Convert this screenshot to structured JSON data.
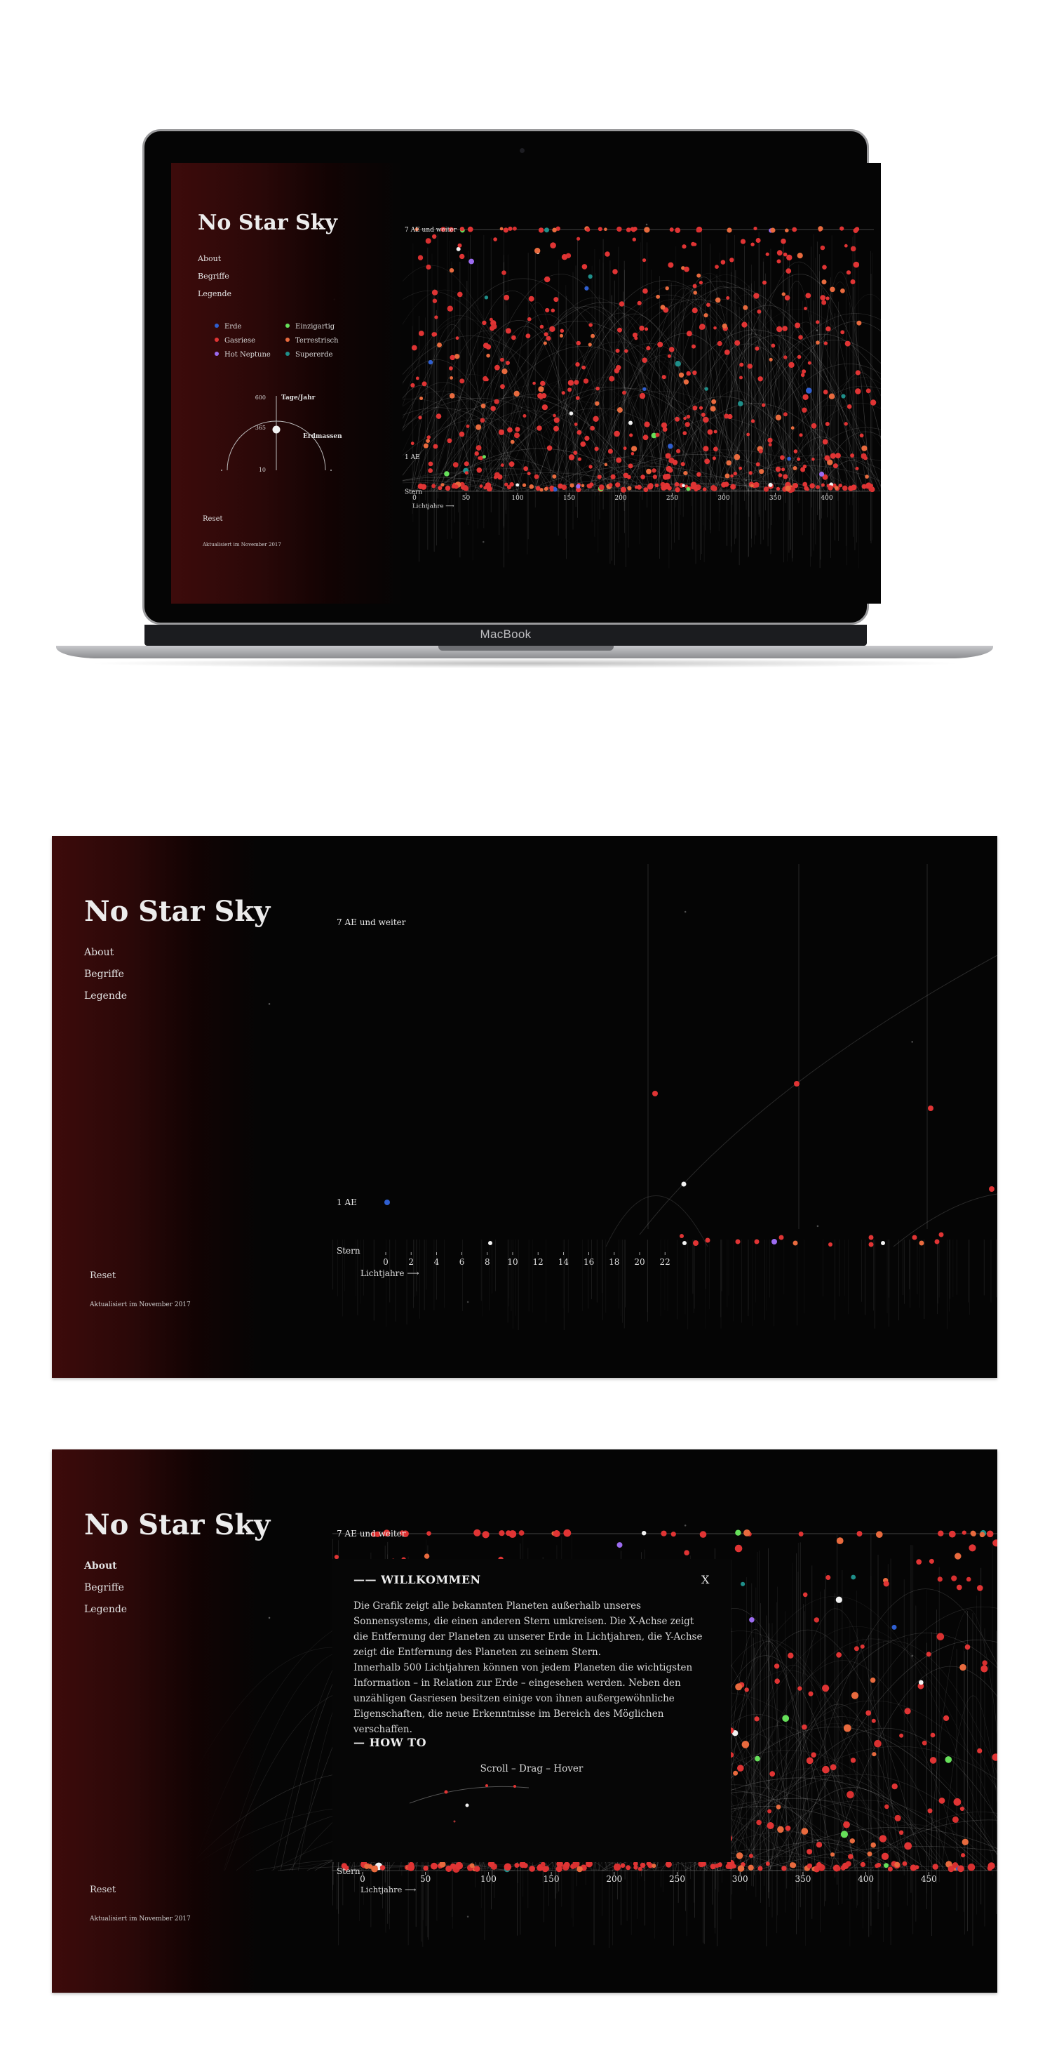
{
  "app": {
    "title": "No Star Sky",
    "nav": [
      "About",
      "Begriffe",
      "Legende"
    ],
    "reset": "Reset",
    "updated": "Aktualisiert im November 2017"
  },
  "device": {
    "label": "MacBook"
  },
  "legend": {
    "items": [
      {
        "label": "Erde",
        "color": "#2f5fd0"
      },
      {
        "label": "Einzigartig",
        "color": "#66e05a"
      },
      {
        "label": "Gasriese",
        "color": "#e03434"
      },
      {
        "label": "Terrestrisch",
        "color": "#e86a3e"
      },
      {
        "label": "Hot Neptune",
        "color": "#9c6bf0"
      },
      {
        "label": "Supererde",
        "color": "#1f8f8a"
      }
    ],
    "dial": {
      "top_value": "600",
      "mid_value": "365",
      "bottom_value": "10",
      "y_label": "Tage/Jahr",
      "x_label": "Erdmassen"
    }
  },
  "chart_labels": {
    "top": "7 AE und weiter",
    "mid": "1 AE",
    "star": "Stern",
    "xunit": "Lichtjahre ⟶"
  },
  "chart_full": {
    "type": "scatter",
    "x_ticks": [
      "0",
      "50",
      "100",
      "150",
      "200",
      "250",
      "300",
      "350",
      "400"
    ],
    "xlim": [
      0,
      450
    ],
    "xlabel": "Lichtjahre"
  },
  "chart_zoom": {
    "type": "scatter",
    "x_ticks": [
      "0",
      "2",
      "4",
      "6",
      "8",
      "10",
      "12",
      "14",
      "16",
      "18",
      "20",
      "22"
    ],
    "xlim": [
      0,
      23
    ]
  },
  "chart_modal": {
    "type": "scatter",
    "x_ticks": [
      "0",
      "50",
      "100",
      "150",
      "200",
      "250",
      "300",
      "350",
      "400",
      "450"
    ],
    "xlim": [
      0,
      500
    ]
  },
  "modal": {
    "welcome_heading": "—— WILLKOMMEN",
    "close": "X",
    "paragraph1": "Die Grafik zeigt alle bekannten Planeten außerhalb unseres Sonnensystems, die einen anderen Stern umkreisen. Die X-Achse zeigt die Entfernung der Planeten zu unserer Erde in Lichtjahren, die Y-Achse zeigt die Entfernung des Planeten zu seinem Stern.",
    "paragraph2": "Innerhalb 500 Lichtjahren können von jedem Planeten die wichtigsten Information – in Relation zur Erde – eingesehen werden. Neben den unzähligen Gasriesen besitzen einige von ihnen außergewöhnliche Eigenschaften, die neue Erkenntnisse im Bereich des Möglichen verschaffen.",
    "howto_heading": "— HOW TO",
    "howto_text": "Scroll – Drag – Hover"
  }
}
